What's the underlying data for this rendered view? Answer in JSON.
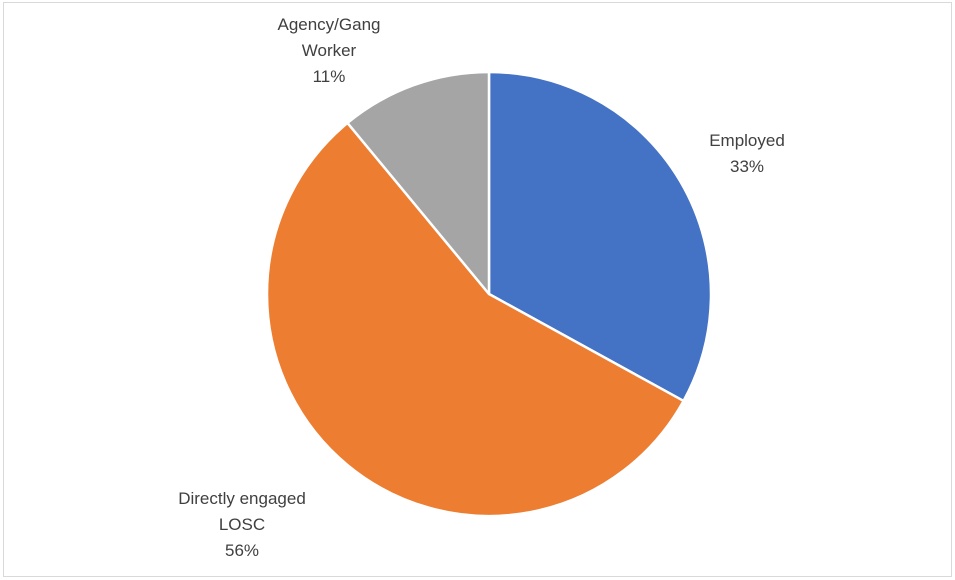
{
  "chart_data": {
    "type": "pie",
    "title": "",
    "slices": [
      {
        "label_lines": [
          "Employed"
        ],
        "percent_text": "33%",
        "value": 33,
        "color": "#4472c4"
      },
      {
        "label_lines": [
          "Directly engaged",
          "LOSC"
        ],
        "percent_text": "56%",
        "value": 56,
        "color": "#ed7d31"
      },
      {
        "label_lines": [
          "Agency/Gang",
          "Worker"
        ],
        "percent_text": "11%",
        "value": 11,
        "color": "#a5a5a5"
      }
    ],
    "start_angle_deg": 0,
    "direction": "clockwise",
    "data_labels": "outside"
  }
}
